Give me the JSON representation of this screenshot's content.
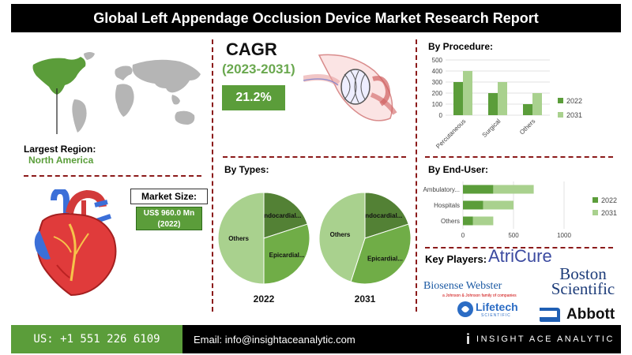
{
  "title": "Global Left Appendage Occlusion Device Market Research Report",
  "region": {
    "label": "Largest Region:",
    "value": "North America"
  },
  "cagr": {
    "title": "CAGR",
    "years": "(2023-2031)",
    "value": "21.2%"
  },
  "market_size": {
    "label": "Market Size:",
    "value_line1": "US$ 960.0 Mn",
    "value_line2": "(2022)"
  },
  "sections": {
    "by_procedure": "By Procedure:",
    "by_types": "By Types:",
    "by_end_user": "By End-User:",
    "key_players": "Key Players:"
  },
  "players": {
    "atricure": "AtriCure",
    "biosense": "Biosense Webster",
    "biosense_sub": "a Johnson & Johnson family of companies",
    "boston_line1": "Boston",
    "boston_line2": "Scientific",
    "lifetech": "Lifetech",
    "lifetech_sub": "SCIENTIFIC",
    "abbott": "Abbott"
  },
  "footer": {
    "phone": "US: +1 551 226 6109",
    "email": "Email: info@insightaceanalytic.com",
    "brand": "INSIGHT ACE ANALYTIC",
    "brand_logo": "i"
  },
  "colors": {
    "dark_green": "#5b9d3a",
    "light_green": "#a9d18e",
    "pie_dark": "#538135",
    "pie_mid": "#70ad47",
    "pie_light": "#a9d18e",
    "divider": "#8b1a1a"
  },
  "chart_data": [
    {
      "type": "bar",
      "name": "by_procedure",
      "categories": [
        "Percutaneous",
        "Surgical",
        "Others"
      ],
      "series": [
        {
          "name": "2022",
          "values": [
            300,
            200,
            100
          ]
        },
        {
          "name": "2031",
          "values": [
            400,
            300,
            200
          ]
        }
      ],
      "ylim": [
        0,
        500
      ],
      "yticks": [
        "0",
        "100",
        "200",
        "300",
        "400",
        "500"
      ],
      "legend": "right",
      "grid": true
    },
    {
      "type": "pie",
      "name": "by_types_2022",
      "label": "2022",
      "slices": [
        {
          "name": "Endocardial...",
          "value": 20
        },
        {
          "name": "Epicardial...",
          "value": 30
        },
        {
          "name": "Others",
          "value": 50
        }
      ]
    },
    {
      "type": "pie",
      "name": "by_types_2031",
      "label": "2031",
      "slices": [
        {
          "name": "Endocardial...",
          "value": 20
        },
        {
          "name": "Epicardial...",
          "value": 35
        },
        {
          "name": "Others",
          "value": 45
        }
      ]
    },
    {
      "type": "bar",
      "orientation": "horizontal",
      "stacked": true,
      "name": "by_end_user",
      "categories": [
        "Ambulatory...",
        "Hospitals",
        "Others"
      ],
      "series": [
        {
          "name": "2022",
          "values": [
            300,
            200,
            100
          ]
        },
        {
          "name": "2031",
          "values": [
            400,
            300,
            200
          ]
        }
      ],
      "xlim": [
        0,
        1000
      ],
      "xticks": [
        "0",
        "500",
        "1000"
      ],
      "legend": "right",
      "grid": true
    }
  ]
}
